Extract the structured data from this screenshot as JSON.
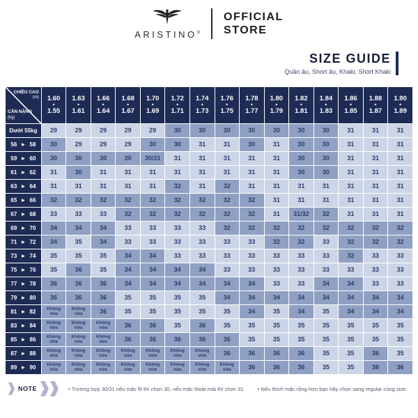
{
  "header": {
    "brand": "ARISTINO",
    "registered": "®",
    "store_line1": "OFFICIAL",
    "store_line2": "STORE"
  },
  "title": {
    "main": "SIZE GUIDE",
    "subtitle": "Quần âu, Short âu, Khaki, Short Khaki"
  },
  "chart_data": {
    "type": "table",
    "corner": {
      "top_label": "CHIỀU CAO",
      "top_unit": "(m)",
      "bottom_label": "CÂN NẶNG",
      "bottom_unit": "(kg)"
    },
    "height_columns": [
      {
        "max": "1.60",
        "min": "1.55"
      },
      {
        "max": "1.63",
        "min": "1.61"
      },
      {
        "max": "1.66",
        "min": "1.64"
      },
      {
        "max": "1.68",
        "min": "1.67"
      },
      {
        "max": "1.70",
        "min": "1.69"
      },
      {
        "max": "1.72",
        "min": "1.71"
      },
      {
        "max": "1.74",
        "min": "1.73"
      },
      {
        "max": "1.76",
        "min": "1.75"
      },
      {
        "max": "1.78",
        "min": "1.77"
      },
      {
        "max": "1.80",
        "min": "1.79"
      },
      {
        "max": "1.82",
        "min": "1.81"
      },
      {
        "max": "1.84",
        "min": "1.83"
      },
      {
        "max": "1.86",
        "min": "1.85"
      },
      {
        "max": "1.88",
        "min": "1.87"
      },
      {
        "max": "1.90",
        "min": "1.89"
      }
    ],
    "up_arrow": "▲",
    "range_arrow": "▶",
    "no_fit_text": "Không vừa",
    "rows": [
      {
        "label": "Dưới 55kg",
        "values": [
          "29",
          "29",
          "29",
          "29",
          "29",
          "30",
          "30",
          "30",
          "30",
          "30",
          "30",
          "30",
          "31",
          "31",
          "31"
        ]
      },
      {
        "label": [
          "56",
          "58"
        ],
        "values": [
          "30",
          "29",
          "29",
          "29",
          "30",
          "30",
          "31",
          "31",
          "30",
          "31",
          "30",
          "30",
          "31",
          "31",
          "31"
        ]
      },
      {
        "label": [
          "59",
          "60"
        ],
        "values": [
          "30",
          "30",
          "30",
          "30",
          "30/31",
          "31",
          "31",
          "31",
          "31",
          "31",
          "30",
          "30",
          "31",
          "31",
          "31"
        ]
      },
      {
        "label": [
          "61",
          "62"
        ],
        "values": [
          "31",
          "30",
          "31",
          "31",
          "31",
          "31",
          "31",
          "31",
          "31",
          "31",
          "30",
          "30",
          "31",
          "31",
          "31"
        ]
      },
      {
        "label": [
          "63",
          "64"
        ],
        "values": [
          "31",
          "31",
          "31",
          "31",
          "31",
          "32",
          "31",
          "32",
          "31",
          "31",
          "31",
          "31",
          "31",
          "31",
          "31"
        ]
      },
      {
        "label": [
          "65",
          "66"
        ],
        "values": [
          "32",
          "32",
          "32",
          "32",
          "32",
          "32",
          "32",
          "32",
          "32",
          "31",
          "31",
          "31",
          "31",
          "31",
          "31"
        ]
      },
      {
        "label": [
          "67",
          "68"
        ],
        "values": [
          "33",
          "33",
          "33",
          "32",
          "32",
          "32",
          "32",
          "32",
          "32",
          "31",
          "31/32",
          "32",
          "31",
          "31",
          "31"
        ]
      },
      {
        "label": [
          "69",
          "70"
        ],
        "values": [
          "34",
          "34",
          "34",
          "33",
          "33",
          "33",
          "33",
          "32",
          "32",
          "32",
          "32",
          "32",
          "32",
          "32",
          "32"
        ]
      },
      {
        "label": [
          "71",
          "72"
        ],
        "values": [
          "34",
          "35",
          "34",
          "33",
          "33",
          "33",
          "33",
          "33",
          "33",
          "32",
          "32",
          "33",
          "32",
          "32",
          "32"
        ]
      },
      {
        "label": [
          "73",
          "74"
        ],
        "values": [
          "35",
          "35",
          "35",
          "34",
          "34",
          "33",
          "33",
          "33",
          "33",
          "33",
          "33",
          "33",
          "32",
          "33",
          "33"
        ]
      },
      {
        "label": [
          "75",
          "76"
        ],
        "values": [
          "35",
          "36",
          "35",
          "34",
          "34",
          "34",
          "34",
          "33",
          "33",
          "33",
          "33",
          "33",
          "33",
          "33",
          "33"
        ]
      },
      {
        "label": [
          "77",
          "78"
        ],
        "values": [
          "36",
          "36",
          "36",
          "34",
          "34",
          "34",
          "34",
          "34",
          "34",
          "33",
          "33",
          "34",
          "34",
          "33",
          "33"
        ]
      },
      {
        "label": [
          "79",
          "80"
        ],
        "values": [
          "36",
          "36",
          "36",
          "35",
          "35",
          "35",
          "35",
          "34",
          "34",
          "34",
          "34",
          "34",
          "34",
          "34",
          "34"
        ]
      },
      {
        "label": [
          "81",
          "82"
        ],
        "values": [
          "Không vừa",
          "Không vừa",
          "36",
          "35",
          "35",
          "35",
          "35",
          "35",
          "34",
          "35",
          "34",
          "35",
          "34",
          "34",
          "34"
        ]
      },
      {
        "label": [
          "83",
          "84"
        ],
        "values": [
          "Không vừa",
          "Không vừa",
          "Không vừa",
          "36",
          "36",
          "35",
          "36",
          "35",
          "35",
          "35",
          "35",
          "35",
          "35",
          "35",
          "35"
        ]
      },
      {
        "label": [
          "85",
          "86"
        ],
        "values": [
          "Không vừa",
          "Không vừa",
          "Không vừa",
          "36",
          "36",
          "36",
          "36",
          "36",
          "35",
          "35",
          "35",
          "35",
          "35",
          "35",
          "35"
        ]
      },
      {
        "label": [
          "87",
          "88"
        ],
        "values": [
          "Không vừa",
          "Không vừa",
          "Không vừa",
          "Không vừa",
          "Không vừa",
          "Không vừa",
          "Không vừa",
          "36",
          "36",
          "36",
          "36",
          "35",
          "35",
          "36",
          "35"
        ]
      },
      {
        "label": [
          "89",
          "90"
        ],
        "values": [
          "Không vừa",
          "Không vừa",
          "Không vừa",
          "Không vừa",
          "Không vừa",
          "Không vừa",
          "Không vừa",
          "Không vừa",
          "36",
          "36",
          "36",
          "35",
          "35",
          "36",
          "36"
        ]
      }
    ]
  },
  "note": {
    "label": "NOTE",
    "items": [
      "Trường hợp 30/31 nếu mặc fit thì chọn 30, nếu mặc thoải mái thì chọn 31",
      "Nếu thích mặc rộng hơn bạn hãy chọn sang regular cùng size."
    ]
  },
  "colors": {
    "navy": "#1e2c55",
    "cell_light": "#ccd5e6",
    "cell_dark": "#8fa0c3",
    "cell_text": "#2b3b6b",
    "note_chevron": "#b4b2cc"
  }
}
